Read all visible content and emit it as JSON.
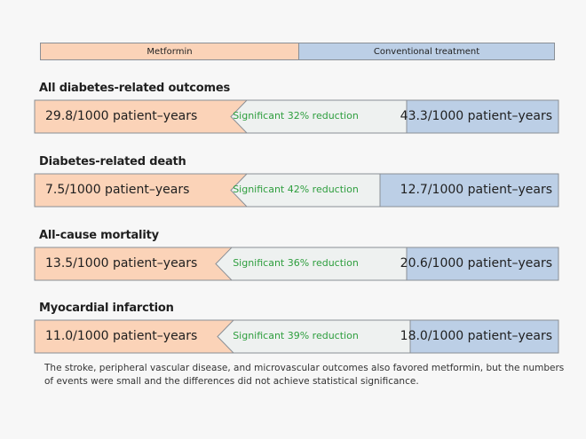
{
  "legend": {
    "left_label": "Metformin",
    "right_label": "Conventional treatment"
  },
  "colors": {
    "metformin": "#fbd3b8",
    "conventional": "#bccfe6",
    "arrow": "#eef1f0",
    "significance_text": "#2e9e3e",
    "border": "#8a8f96"
  },
  "outcomes": [
    {
      "title": "All diabetes-related outcomes",
      "metformin": "29.8/1000 patient–years",
      "comparison": "Significant 32% reduction",
      "conventional": "43.3/1000 patient–years"
    },
    {
      "title": "Diabetes-related death",
      "metformin": "7.5/1000 patient–years",
      "comparison": "Significant 42% reduction",
      "conventional": "12.7/1000 patient–years"
    },
    {
      "title": "All-cause mortality",
      "metformin": "13.5/1000 patient–years",
      "comparison": "Significant 36% reduction",
      "conventional": "20.6/1000 patient–years"
    },
    {
      "title": "Myocardial infarction",
      "metformin": "11.0/1000 patient–years",
      "comparison": "Significant 39% reduction",
      "conventional": "18.0/1000 patient–years"
    }
  ],
  "footnote": "The stroke, peripheral vascular disease, and microvascular outcomes also favored metformin, but the numbers of events were small and the differences did not achieve statistical significance."
}
